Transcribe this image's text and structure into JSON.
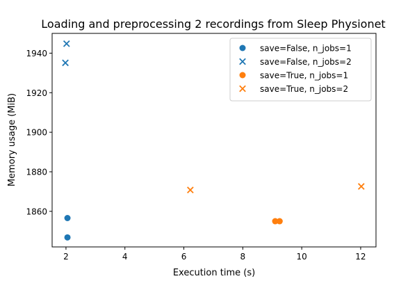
{
  "chart_data": {
    "type": "scatter",
    "title": "Loading and preprocessing 2 recordings from Sleep Physionet",
    "xlabel": "Execution time (s)",
    "ylabel": "Memory usage (MiB)",
    "xlim": [
      1.53,
      12.52
    ],
    "ylim": [
      1842,
      1950
    ],
    "xticks": [
      2,
      4,
      6,
      8,
      10,
      12
    ],
    "yticks": [
      1860,
      1880,
      1900,
      1920,
      1940
    ],
    "grid": false,
    "legend_position": "top-right",
    "series": [
      {
        "name": "save=False, n_jobs=1",
        "marker": "circle",
        "color": "#1f77b4",
        "points": [
          {
            "x": 2.05,
            "y": 1856.6
          },
          {
            "x": 2.05,
            "y": 1846.8
          }
        ]
      },
      {
        "name": "save=False, n_jobs=2",
        "marker": "x",
        "color": "#1f77b4",
        "points": [
          {
            "x": 2.02,
            "y": 1944.8
          },
          {
            "x": 1.98,
            "y": 1935.1
          }
        ]
      },
      {
        "name": "save=True, n_jobs=1",
        "marker": "circle",
        "color": "#ff7f0e",
        "points": [
          {
            "x": 9.1,
            "y": 1855.0
          },
          {
            "x": 9.25,
            "y": 1855.0
          }
        ]
      },
      {
        "name": "save=True, n_jobs=2",
        "marker": "x",
        "color": "#ff7f0e",
        "points": [
          {
            "x": 6.22,
            "y": 1870.8
          },
          {
            "x": 12.02,
            "y": 1872.6
          }
        ]
      }
    ]
  }
}
